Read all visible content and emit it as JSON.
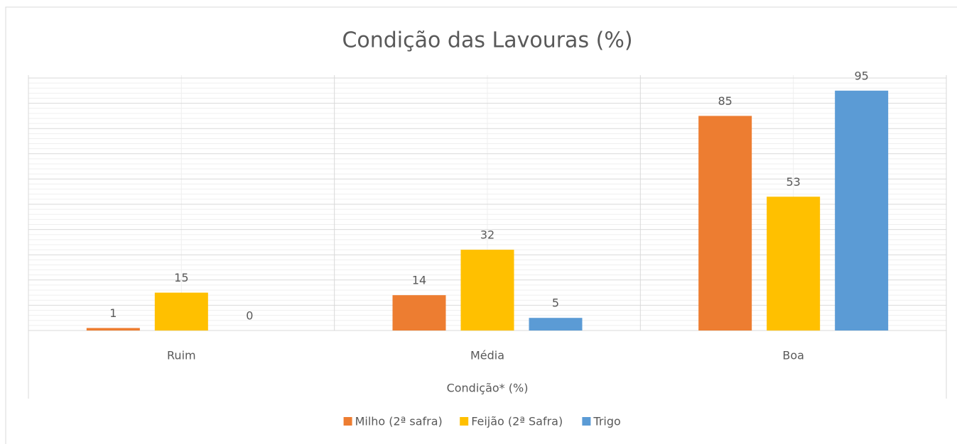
{
  "chart_data": {
    "type": "bar",
    "title": "Condição das Lavouras (%)",
    "x_label": "Condição* (%)",
    "categories": [
      "Ruim",
      "Média",
      "Boa"
    ],
    "series": [
      {
        "name": "Milho (2ª safra)",
        "color": "#ed7d31",
        "values": [
          1,
          14,
          85
        ]
      },
      {
        "name": "Feijão (2ª Safra)",
        "color": "#ffc000",
        "values": [
          15,
          32,
          53
        ]
      },
      {
        "name": "Trigo",
        "color": "#5b9bd5",
        "values": [
          0,
          5,
          95
        ]
      }
    ],
    "ylim": [
      0,
      100
    ],
    "yticks": [
      0,
      10,
      20,
      30,
      40,
      50,
      60,
      70,
      80,
      90,
      100
    ],
    "grid": true,
    "legend": "bottom"
  }
}
